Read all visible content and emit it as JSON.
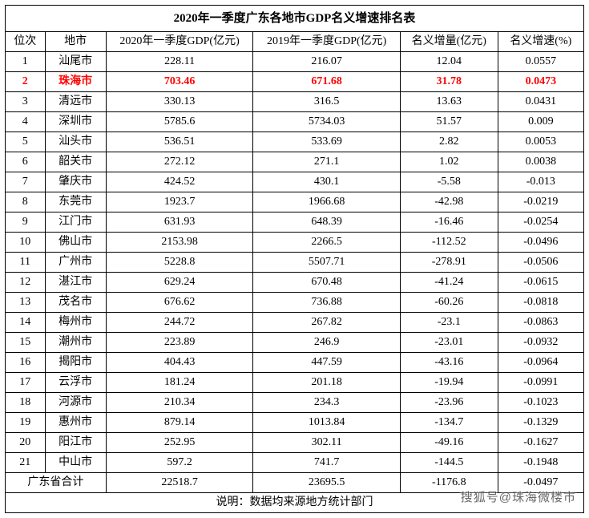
{
  "table": {
    "title": "2020年一季度广东各地市GDP名义增速排名表",
    "columns": [
      "位次",
      "地市",
      "2020年一季度GDP(亿元)",
      "2019年一季度GDP(亿元)",
      "名义增量(亿元)",
      "名义增速(%)"
    ],
    "highlight_row_index": 1,
    "highlight_color": "#ff0000",
    "rows": [
      [
        "1",
        "汕尾市",
        "228.11",
        "216.07",
        "12.04",
        "0.0557"
      ],
      [
        "2",
        "珠海市",
        "703.46",
        "671.68",
        "31.78",
        "0.0473"
      ],
      [
        "3",
        "清远市",
        "330.13",
        "316.5",
        "13.63",
        "0.0431"
      ],
      [
        "4",
        "深圳市",
        "5785.6",
        "5734.03",
        "51.57",
        "0.009"
      ],
      [
        "5",
        "汕头市",
        "536.51",
        "533.69",
        "2.82",
        "0.0053"
      ],
      [
        "6",
        "韶关市",
        "272.12",
        "271.1",
        "1.02",
        "0.0038"
      ],
      [
        "7",
        "肇庆市",
        "424.52",
        "430.1",
        "-5.58",
        "-0.013"
      ],
      [
        "8",
        "东莞市",
        "1923.7",
        "1966.68",
        "-42.98",
        "-0.0219"
      ],
      [
        "9",
        "江门市",
        "631.93",
        "648.39",
        "-16.46",
        "-0.0254"
      ],
      [
        "10",
        "佛山市",
        "2153.98",
        "2266.5",
        "-112.52",
        "-0.0496"
      ],
      [
        "11",
        "广州市",
        "5228.8",
        "5507.71",
        "-278.91",
        "-0.0506"
      ],
      [
        "12",
        "湛江市",
        "629.24",
        "670.48",
        "-41.24",
        "-0.0615"
      ],
      [
        "13",
        "茂名市",
        "676.62",
        "736.88",
        "-60.26",
        "-0.0818"
      ],
      [
        "14",
        "梅州市",
        "244.72",
        "267.82",
        "-23.1",
        "-0.0863"
      ],
      [
        "15",
        "潮州市",
        "223.89",
        "246.9",
        "-23.01",
        "-0.0932"
      ],
      [
        "16",
        "揭阳市",
        "404.43",
        "447.59",
        "-43.16",
        "-0.0964"
      ],
      [
        "17",
        "云浮市",
        "181.24",
        "201.18",
        "-19.94",
        "-0.0991"
      ],
      [
        "18",
        "河源市",
        "210.34",
        "234.3",
        "-23.96",
        "-0.1023"
      ],
      [
        "19",
        "惠州市",
        "879.14",
        "1013.84",
        "-134.7",
        "-0.1329"
      ],
      [
        "20",
        "阳江市",
        "252.95",
        "302.11",
        "-49.16",
        "-0.1627"
      ],
      [
        "21",
        "中山市",
        "597.2",
        "741.7",
        "-144.5",
        "-0.1948"
      ]
    ],
    "total_row": [
      "广东省合计",
      "22518.7",
      "23695.5",
      "-1176.8",
      "-0.0497"
    ],
    "footnote": "说明：数据均来源地方统计部门"
  },
  "watermark": "搜狐号@珠海微楼市"
}
